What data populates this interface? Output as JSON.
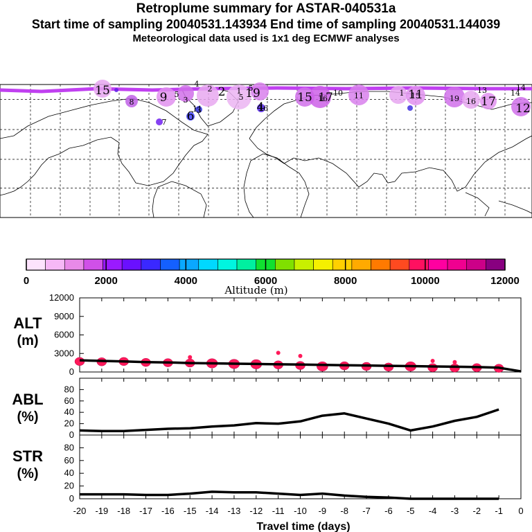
{
  "header": {
    "title": "Retroplume summary for ASTAR-040531a",
    "subtitle": "Start time of sampling 20040531.143934     End time of sampling 20040531.144039",
    "met_line": "Meteorological data used is 1x1 deg ECMWF analyses"
  },
  "map": {
    "labels": [
      "15",
      "8",
      "5",
      "6",
      "3",
      "2",
      "2",
      "1",
      "16",
      "19",
      "5",
      "11",
      "4",
      "10",
      "14",
      "11",
      "1",
      "7",
      "15",
      "15",
      "16",
      "17",
      "19",
      "16",
      "17",
      "13",
      "14",
      "12",
      "11",
      "4",
      "9",
      "3",
      "5"
    ]
  },
  "colorbar": {
    "tick_labels": [
      "0",
      "2000",
      "4000",
      "6000",
      "8000",
      "10000",
      "12000"
    ],
    "title": "Altitude (m)",
    "colors": [
      "#fde3fd",
      "#f6b8f6",
      "#e88ae8",
      "#d050e8",
      "#9a1aff",
      "#6a10ff",
      "#3a28ff",
      "#1460ff",
      "#0aa8ff",
      "#00d8ff",
      "#00f5e0",
      "#00f0a0",
      "#10e030",
      "#80e000",
      "#c8f000",
      "#f5f000",
      "#ffd000",
      "#ffaa00",
      "#ff7a00",
      "#ff4a20",
      "#ff1060",
      "#ff00a0",
      "#f00090",
      "#cc0088",
      "#880080"
    ]
  },
  "chart_data": [
    {
      "type": "line",
      "id": "altitude",
      "panel_label": "ALT",
      "unit_label": "(m)",
      "ylim": [
        0,
        12000
      ],
      "yticks": [
        0,
        3000,
        6000,
        9000,
        12000
      ],
      "x": [
        -20,
        -19,
        -18,
        -17,
        -16,
        -15,
        -14,
        -13,
        -12,
        -11,
        -10,
        -9,
        -8,
        -7,
        -6,
        -5,
        -4,
        -3,
        -2,
        -1,
        0
      ],
      "series": [
        {
          "name": "mean altitude",
          "values": [
            1900,
            1800,
            1700,
            1600,
            1550,
            1450,
            1400,
            1350,
            1300,
            1250,
            1200,
            1150,
            1100,
            1050,
            1000,
            950,
            900,
            850,
            800,
            700,
            100
          ]
        }
      ],
      "particle_clusters": [
        {
          "x": -20,
          "y": 1700
        },
        {
          "x": -19,
          "y": 1650
        },
        {
          "x": -18,
          "y": 1700
        },
        {
          "x": -17,
          "y": 1550
        },
        {
          "x": -16,
          "y": 1500
        },
        {
          "x": -15,
          "y": 1450
        },
        {
          "x": -14,
          "y": 1400
        },
        {
          "x": -13,
          "y": 1300
        },
        {
          "x": -12,
          "y": 1250
        },
        {
          "x": -11,
          "y": 1150
        },
        {
          "x": -10,
          "y": 1050
        },
        {
          "x": -9,
          "y": 900
        },
        {
          "x": -8,
          "y": 1000
        },
        {
          "x": -7,
          "y": 900
        },
        {
          "x": -6,
          "y": 800
        },
        {
          "x": -5,
          "y": 900
        },
        {
          "x": -4,
          "y": 700
        },
        {
          "x": -3,
          "y": 650
        },
        {
          "x": -2,
          "y": 700
        },
        {
          "x": -1,
          "y": 600
        }
      ],
      "particle_outliers": [
        {
          "x": -15,
          "y": 2400
        },
        {
          "x": -11,
          "y": 3100
        },
        {
          "x": -10,
          "y": 2600
        },
        {
          "x": -4,
          "y": 1800
        },
        {
          "x": -3,
          "y": 1600
        }
      ]
    },
    {
      "type": "line",
      "id": "abl",
      "panel_label": "ABL",
      "unit_label": "(%)",
      "ylim": [
        0,
        100
      ],
      "yticks": [
        0,
        20,
        40,
        60,
        80
      ],
      "x": [
        -20,
        -19,
        -18,
        -17,
        -16,
        -15,
        -14,
        -13,
        -12,
        -11,
        -10,
        -9,
        -8,
        -7,
        -6,
        -5,
        -4,
        -3,
        -2,
        -1
      ],
      "series": [
        {
          "name": "ABL fraction",
          "values": [
            8,
            7,
            7,
            9,
            11,
            12,
            15,
            17,
            21,
            20,
            24,
            34,
            38,
            29,
            20,
            8,
            15,
            25,
            32,
            45
          ]
        }
      ]
    },
    {
      "type": "line",
      "id": "str",
      "panel_label": "STR",
      "unit_label": "(%)",
      "ylim": [
        0,
        100
      ],
      "yticks": [
        0,
        20,
        40,
        60,
        80
      ],
      "x": [
        -20,
        -19,
        -18,
        -17,
        -16,
        -15,
        -14,
        -13,
        -12,
        -11,
        -10,
        -9,
        -8,
        -7,
        -6,
        -5,
        -4,
        -3,
        -2,
        -1
      ],
      "series": [
        {
          "name": "stratospheric fraction",
          "values": [
            7,
            7,
            7,
            6,
            6,
            8,
            11,
            10,
            10,
            8,
            6,
            8,
            5,
            3,
            2,
            0,
            0,
            0,
            0,
            0
          ]
        }
      ],
      "xlabel": "Travel time (days)",
      "xtick_labels": [
        "-20",
        "-19",
        "-18",
        "-17",
        "-16",
        "-15",
        "-14",
        "-13",
        "-12",
        "-11",
        "-10",
        "-9",
        "-8",
        "-7",
        "-6",
        "-5",
        "-4",
        "-3",
        "-2",
        "-1",
        "0"
      ]
    }
  ]
}
